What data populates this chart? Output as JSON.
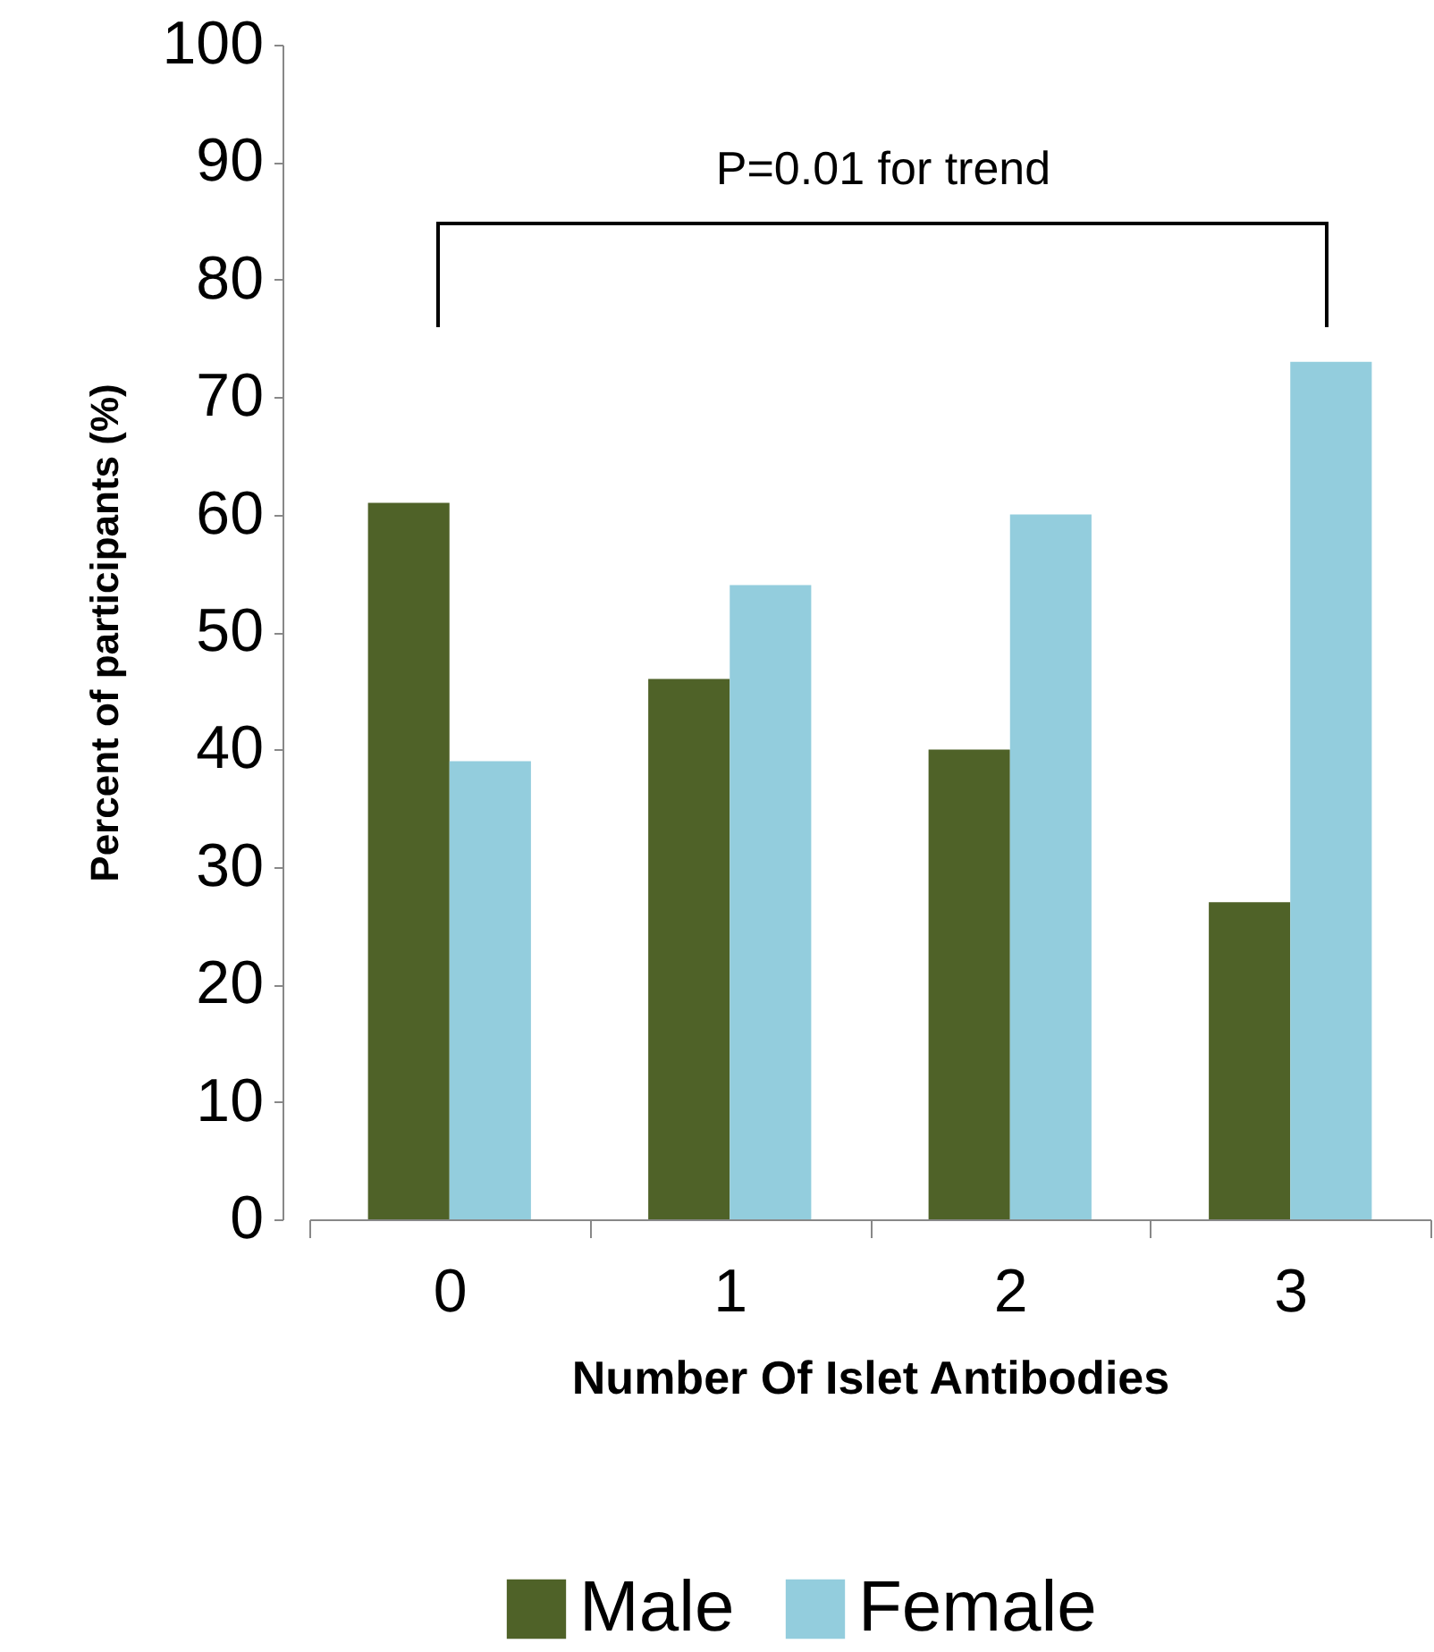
{
  "chart_data": {
    "type": "bar",
    "xlabel": "Number Of Islet Antibodies",
    "ylabel": "Percent of participants (%)",
    "categories": [
      "0",
      "1",
      "2",
      "3"
    ],
    "series": [
      {
        "name": "Male",
        "color": "#4f6228",
        "values": [
          61,
          46,
          40,
          27
        ]
      },
      {
        "name": "Female",
        "color": "#93cddd",
        "values": [
          39,
          54,
          60,
          73
        ]
      }
    ],
    "ylim": [
      0,
      100
    ],
    "yticks": [
      0,
      10,
      20,
      30,
      40,
      50,
      60,
      70,
      80,
      90,
      100
    ],
    "grid": false,
    "legend": "bottom",
    "annotations": [
      "P=0.01 for trend"
    ]
  }
}
